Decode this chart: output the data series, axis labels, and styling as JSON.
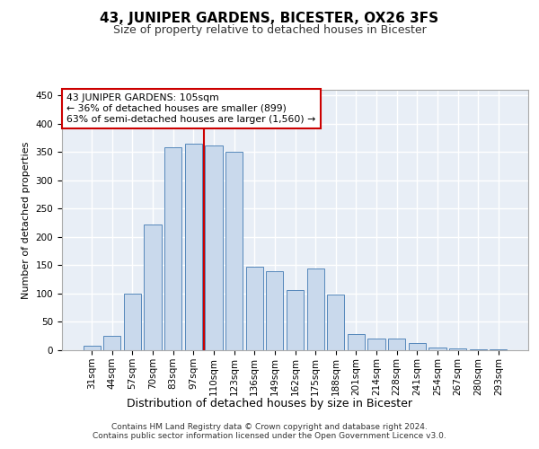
{
  "title": "43, JUNIPER GARDENS, BICESTER, OX26 3FS",
  "subtitle": "Size of property relative to detached houses in Bicester",
  "xlabel": "Distribution of detached houses by size in Bicester",
  "ylabel": "Number of detached properties",
  "bar_labels": [
    "31sqm",
    "44sqm",
    "57sqm",
    "70sqm",
    "83sqm",
    "97sqm",
    "110sqm",
    "123sqm",
    "136sqm",
    "149sqm",
    "162sqm",
    "175sqm",
    "188sqm",
    "201sqm",
    "214sqm",
    "228sqm",
    "241sqm",
    "254sqm",
    "267sqm",
    "280sqm",
    "293sqm"
  ],
  "bar_values": [
    8,
    25,
    100,
    222,
    358,
    365,
    362,
    350,
    148,
    140,
    107,
    145,
    98,
    28,
    20,
    20,
    12,
    5,
    3,
    2,
    1
  ],
  "bar_color": "#c9d9ec",
  "bar_edge_color": "#5588bb",
  "background_color": "#e8eef6",
  "grid_color": "#ffffff",
  "annotation_box_text": "43 JUNIPER GARDENS: 105sqm\n← 36% of detached houses are smaller (899)\n63% of semi-detached houses are larger (1,560) →",
  "annotation_box_color": "#ffffff",
  "annotation_box_edge_color": "#cc0000",
  "red_line_color": "#cc0000",
  "red_line_x": 5.5,
  "footer_text": "Contains HM Land Registry data © Crown copyright and database right 2024.\nContains public sector information licensed under the Open Government Licence v3.0.",
  "ylim": [
    0,
    460
  ],
  "yticks": [
    0,
    50,
    100,
    150,
    200,
    250,
    300,
    350,
    400,
    450
  ],
  "title_fontsize": 11,
  "subtitle_fontsize": 9,
  "ylabel_fontsize": 8,
  "xlabel_fontsize": 9,
  "tick_fontsize": 7.5
}
